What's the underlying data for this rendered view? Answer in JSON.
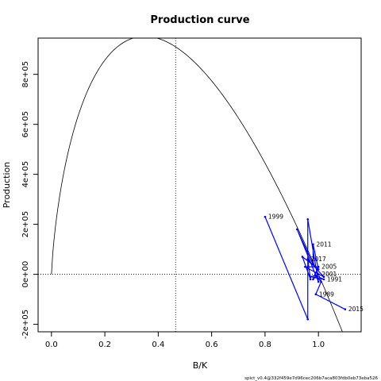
{
  "chart_data": {
    "type": "line",
    "title": "Production curve",
    "xlabel": "B/K",
    "ylabel": "Production",
    "xlim": [
      -0.05,
      1.16
    ],
    "ylim": [
      -230000,
      945000
    ],
    "x_ticks": [
      {
        "value": 0.0,
        "label": "0.0"
      },
      {
        "value": 0.2,
        "label": "0.2"
      },
      {
        "value": 0.4,
        "label": "0.4"
      },
      {
        "value": 0.6,
        "label": "0.6"
      },
      {
        "value": 0.8,
        "label": "0.8"
      },
      {
        "value": 1.0,
        "label": "1.0"
      }
    ],
    "y_ticks": [
      {
        "value": -200000,
        "label": "-2e+05"
      },
      {
        "value": 0,
        "label": "0e+00"
      },
      {
        "value": 200000,
        "label": "2e+05"
      },
      {
        "value": 400000,
        "label": "4e+05"
      },
      {
        "value": 600000,
        "label": "6e+05"
      },
      {
        "value": 800000,
        "label": "8e+05"
      }
    ],
    "curve": {
      "bmsy_over_k": 0.465,
      "max_production": 910000,
      "zero_at": [
        0.0,
        1.0
      ]
    },
    "reference_lines": {
      "vertical_x": 0.465,
      "horizontal_y": 0
    },
    "series": [
      {
        "color": "#0000ff",
        "points": [
          {
            "x": 0.8,
            "y": 230000,
            "label": "1999"
          },
          {
            "x": 0.96,
            "y": -180000,
            "label": ""
          },
          {
            "x": 0.96,
            "y": 220000,
            "label": ""
          },
          {
            "x": 1.0,
            "y": -30000,
            "label": ""
          },
          {
            "x": 0.92,
            "y": 180000,
            "label": ""
          },
          {
            "x": 0.98,
            "y": 40000,
            "label": ""
          },
          {
            "x": 0.98,
            "y": 120000,
            "label": "2011"
          },
          {
            "x": 1.0,
            "y": 20000,
            "label": ""
          },
          {
            "x": 0.94,
            "y": 70000,
            "label": ""
          },
          {
            "x": 0.97,
            "y": -20000,
            "label": ""
          },
          {
            "x": 0.96,
            "y": 60000,
            "label": "2017"
          },
          {
            "x": 1.02,
            "y": -10000,
            "label": ""
          },
          {
            "x": 0.95,
            "y": 30000,
            "label": ""
          },
          {
            "x": 1.0,
            "y": 30000,
            "label": "2005"
          },
          {
            "x": 0.98,
            "y": -20000,
            "label": ""
          },
          {
            "x": 1.0,
            "y": 0,
            "label": "2001"
          },
          {
            "x": 0.97,
            "y": -10000,
            "label": ""
          },
          {
            "x": 1.02,
            "y": -20000,
            "label": "1991"
          },
          {
            "x": 0.99,
            "y": -5000,
            "label": ""
          },
          {
            "x": 1.01,
            "y": -30000,
            "label": ""
          },
          {
            "x": 0.99,
            "y": -80000,
            "label": "1989"
          },
          {
            "x": 1.1,
            "y": -140000,
            "label": "2015"
          }
        ]
      }
    ],
    "footer": "spict_v0.4@332f459e7d96cec206b7aca803fdb0eb73eba526"
  }
}
